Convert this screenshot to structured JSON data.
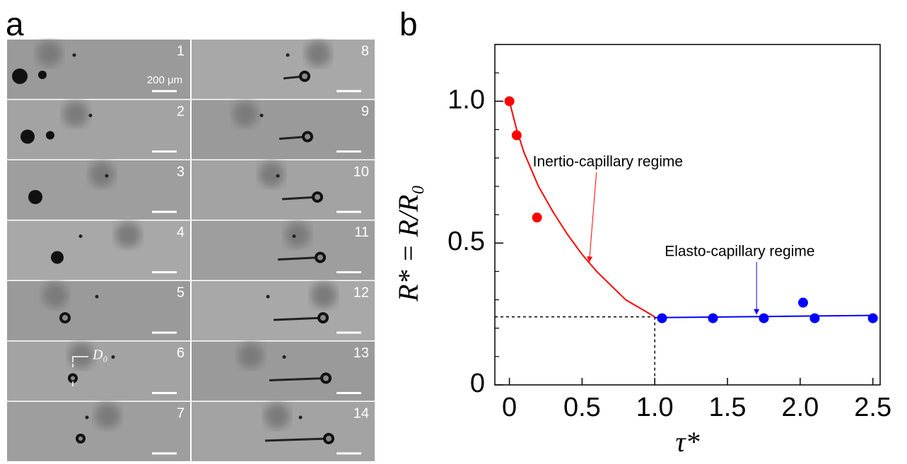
{
  "panel_a": {
    "label": "a",
    "frames": [
      "1",
      "2",
      "3",
      "4",
      "5",
      "6",
      "7",
      "8",
      "9",
      "10",
      "11",
      "12",
      "13",
      "14"
    ],
    "scale_bar": "200 μm",
    "diameter_label": "D₀"
  },
  "chart_data": {
    "type": "scatter",
    "panel_label": "b",
    "x_label": "τ*",
    "y_label": "R* = R/R₀",
    "xlim": [
      -0.1,
      2.55
    ],
    "ylim": [
      0,
      1.2
    ],
    "xticks": [
      0,
      0.5,
      {
        "value": 1,
        "label": "1.0"
      },
      1.5,
      {
        "value": 2,
        "label": "2.0"
      },
      2.5
    ],
    "yticks": [
      0,
      0.5,
      {
        "value": 1,
        "label": "1.0"
      }
    ],
    "yminorticks": [
      0.1,
      0.2,
      0.3,
      0.4,
      0.6,
      0.7,
      0.8,
      0.9,
      1.1,
      1.2
    ],
    "series": [
      {
        "color": "#ff0000",
        "x": [
          0,
          0.05,
          0.19
        ],
        "values": [
          1.0,
          0.88,
          0.59
        ]
      },
      {
        "color": "#0000ff",
        "x": [
          1.05,
          1.4,
          1.75,
          2.02,
          2.1,
          2.5
        ],
        "values": [
          0.235,
          0.235,
          0.235,
          0.29,
          0.235,
          0.235
        ]
      }
    ],
    "curves": [
      {
        "color": "#ff0000",
        "x": [
          0,
          0.05,
          0.1,
          0.2,
          0.3,
          0.4,
          0.5,
          0.6,
          0.7,
          0.8,
          0.9,
          1.0
        ],
        "values": [
          1.0,
          0.9,
          0.82,
          0.7,
          0.61,
          0.53,
          0.46,
          0.4,
          0.35,
          0.3,
          0.27,
          0.24
        ]
      },
      {
        "color": "#0000ff",
        "x": [
          1.0,
          2.5
        ],
        "values": [
          0.237,
          0.245
        ]
      }
    ],
    "reference": {
      "x": 1.0,
      "y": 0.24
    },
    "annotations": [
      {
        "text": "Inertio-capillary regime",
        "color": "#ff0000",
        "x": 0.55,
        "y": 0.43
      },
      {
        "text": "Elasto-capillary regime",
        "color": "#0000ff",
        "x": 1.7,
        "y": 0.245
      }
    ]
  }
}
